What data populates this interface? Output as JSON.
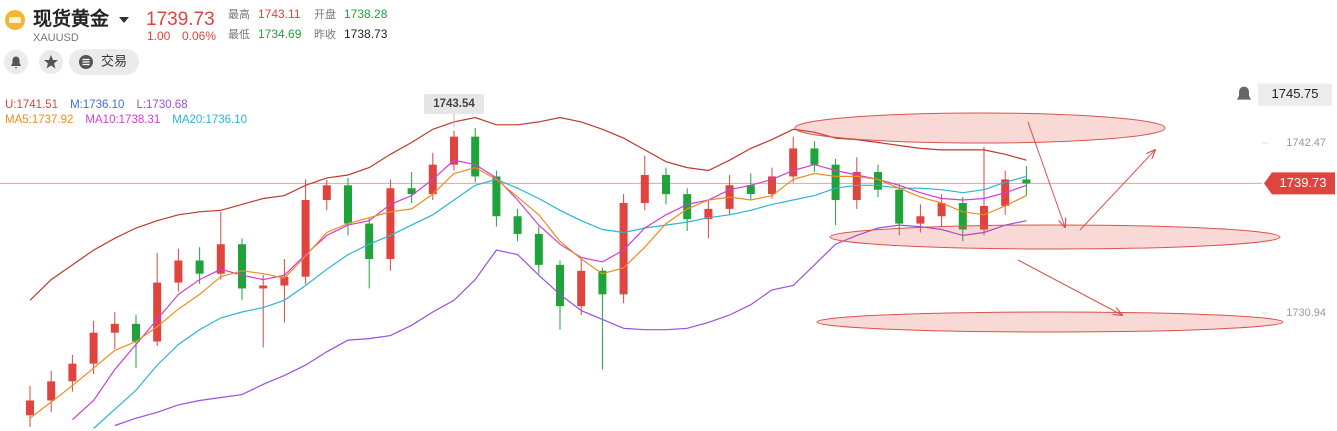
{
  "header": {
    "name": "现货黄金",
    "symbol": "XAUUSD",
    "price": "1739.73",
    "change": "1.00",
    "change_pct": "0.06%",
    "stats": [
      {
        "label": "最高",
        "value": "1743.11",
        "color": "#e0443e"
      },
      {
        "label": "开盘",
        "value": "1738.28",
        "color": "#1fa33a"
      },
      {
        "label": "最低",
        "value": "1734.69",
        "color": "#1fa33a"
      },
      {
        "label": "昨收",
        "value": "1738.73",
        "color": "#222222"
      }
    ],
    "trade_button": "交易"
  },
  "chart_data": {
    "type": "candlestick",
    "ylim": [
      1722.93,
      1752.17
    ],
    "yticks": [
      1742.47,
      1730.94
    ],
    "up_color": "#e0443e",
    "down_color": "#1fa33a",
    "last_price": 1739.73,
    "alert_price": 1745.75,
    "max_label": 1743.54,
    "max_index": 20,
    "legend": [
      [
        {
          "text": "U:1741.51",
          "color": "#e0443e"
        },
        {
          "text": "M:1736.10",
          "color": "#3a6fd8"
        },
        {
          "text": "L:1730.68",
          "color": "#9b4fe0"
        }
      ],
      [
        {
          "text": "MA5:1737.92",
          "color": "#f08c1e"
        },
        {
          "text": "MA10:1738.31",
          "color": "#d43cd6"
        },
        {
          "text": "MA20:1736.10",
          "color": "#2bb4d8"
        }
      ]
    ],
    "candles": [
      [
        1724.0,
        1726.0,
        1723.2,
        1725.0
      ],
      [
        1725.0,
        1727.0,
        1724.2,
        1726.3
      ],
      [
        1726.3,
        1728.1,
        1725.6,
        1727.5
      ],
      [
        1727.5,
        1730.4,
        1726.8,
        1729.6
      ],
      [
        1729.6,
        1731.0,
        1728.5,
        1730.2
      ],
      [
        1730.2,
        1730.8,
        1727.2,
        1729.0
      ],
      [
        1729.0,
        1735.0,
        1728.7,
        1733.0
      ],
      [
        1733.0,
        1735.3,
        1732.4,
        1734.5
      ],
      [
        1734.5,
        1735.4,
        1732.9,
        1733.6
      ],
      [
        1733.6,
        1737.8,
        1733.2,
        1735.6
      ],
      [
        1735.6,
        1736.0,
        1731.8,
        1732.6
      ],
      [
        1732.6,
        1733.5,
        1728.6,
        1732.8
      ],
      [
        1732.8,
        1734.6,
        1730.3,
        1733.4
      ],
      [
        1733.4,
        1740.0,
        1732.9,
        1738.6
      ],
      [
        1738.6,
        1740.0,
        1737.9,
        1739.6
      ],
      [
        1739.6,
        1740.1,
        1736.2,
        1737.0
      ],
      [
        1737.0,
        1737.4,
        1732.6,
        1734.6
      ],
      [
        1734.6,
        1740.0,
        1733.8,
        1739.4
      ],
      [
        1739.4,
        1740.5,
        1738.4,
        1739.0
      ],
      [
        1739.0,
        1741.8,
        1738.6,
        1741.0
      ],
      [
        1741.0,
        1743.3,
        1740.6,
        1742.9
      ],
      [
        1742.9,
        1743.5,
        1739.8,
        1740.2
      ],
      [
        1740.2,
        1740.6,
        1736.8,
        1737.5
      ],
      [
        1737.5,
        1738.0,
        1735.8,
        1736.3
      ],
      [
        1736.3,
        1736.8,
        1733.6,
        1734.2
      ],
      [
        1734.2,
        1734.5,
        1729.8,
        1731.4
      ],
      [
        1731.4,
        1734.6,
        1730.8,
        1733.8
      ],
      [
        1733.8,
        1734.0,
        1727.1,
        1732.2
      ],
      [
        1732.2,
        1739.0,
        1731.6,
        1738.4
      ],
      [
        1738.4,
        1741.6,
        1737.9,
        1740.3
      ],
      [
        1740.3,
        1740.8,
        1738.3,
        1739.0
      ],
      [
        1739.0,
        1739.4,
        1736.5,
        1737.3
      ],
      [
        1737.3,
        1738.6,
        1736.0,
        1738.0
      ],
      [
        1738.0,
        1740.3,
        1737.6,
        1739.6
      ],
      [
        1739.6,
        1740.4,
        1738.6,
        1739.0
      ],
      [
        1739.0,
        1740.8,
        1738.7,
        1740.2
      ],
      [
        1740.2,
        1742.9,
        1739.8,
        1742.1
      ],
      [
        1742.1,
        1742.6,
        1740.5,
        1741.0
      ],
      [
        1741.0,
        1741.4,
        1736.9,
        1738.6
      ],
      [
        1738.6,
        1741.5,
        1738.0,
        1740.5
      ],
      [
        1740.5,
        1741.0,
        1738.8,
        1739.3
      ],
      [
        1739.3,
        1739.7,
        1736.2,
        1737.0
      ],
      [
        1737.0,
        1738.3,
        1736.4,
        1737.5
      ],
      [
        1737.5,
        1739.0,
        1736.8,
        1738.4
      ],
      [
        1738.4,
        1738.8,
        1735.8,
        1736.6
      ],
      [
        1736.6,
        1742.2,
        1736.2,
        1738.2
      ],
      [
        1738.2,
        1740.6,
        1737.6,
        1740.0
      ],
      [
        1740.0,
        1740.9,
        1738.9,
        1739.73
      ]
    ],
    "series": [
      {
        "color": "#c0392b",
        "values": [
          1731.8,
          1733.2,
          1734.2,
          1735.2,
          1736.0,
          1736.7,
          1737.2,
          1737.6,
          1737.8,
          1737.9,
          1738.3,
          1738.7,
          1738.9,
          1739.6,
          1740.1,
          1740.3,
          1740.8,
          1741.7,
          1742.5,
          1743.4,
          1743.9,
          1744.2,
          1743.7,
          1743.7,
          1743.9,
          1744.2,
          1743.9,
          1743.4,
          1742.8,
          1742.0,
          1741.2,
          1740.8,
          1740.6,
          1741.3,
          1742.1,
          1742.7,
          1743.4,
          1743.2,
          1742.8,
          1742.7,
          1742.5,
          1742.3,
          1742.1,
          1742.0,
          1742.0,
          1742.0,
          1741.7,
          1741.3
        ]
      },
      {
        "color": "#9b4fe0",
        "values": [
          null,
          null,
          null,
          null,
          1723.3,
          1723.8,
          1724.2,
          1724.7,
          1725.0,
          1725.2,
          1725.4,
          1726.1,
          1726.7,
          1727.4,
          1728.3,
          1729.1,
          1729.2,
          1729.4,
          1730.1,
          1731.0,
          1731.8,
          1733.2,
          1735.2,
          1734.9,
          1733.5,
          1732.2,
          1731.1,
          1730.5,
          1729.9,
          1729.8,
          1729.8,
          1729.9,
          1730.3,
          1730.8,
          1731.5,
          1732.5,
          1732.8,
          1734.2,
          1735.6,
          1736.2,
          1736.7,
          1736.9,
          1736.8,
          1736.6,
          1736.2,
          1736.4,
          1736.9,
          1737.2
        ]
      },
      {
        "color": "#2bb4d8",
        "values": [
          null,
          null,
          null,
          1723.1,
          1724.4,
          1725.7,
          1727.4,
          1728.8,
          1729.8,
          1730.6,
          1731.0,
          1731.3,
          1731.8,
          1732.8,
          1733.9,
          1734.9,
          1735.6,
          1736.2,
          1736.9,
          1737.6,
          1738.6,
          1739.6,
          1740.0,
          1739.4,
          1738.7,
          1737.9,
          1737.2,
          1736.6,
          1736.4,
          1736.7,
          1736.9,
          1737.1,
          1737.4,
          1737.6,
          1737.9,
          1738.3,
          1738.6,
          1738.9,
          1739.4,
          1739.6,
          1739.6,
          1739.4,
          1739.4,
          1739.3,
          1739.1,
          1739.3,
          1739.8,
          1740.2
        ]
      },
      {
        "color": "#d43cd6",
        "values": [
          null,
          null,
          1723.7,
          1725.0,
          1727.1,
          1728.8,
          1730.5,
          1732.2,
          1733.2,
          1733.9,
          1733.5,
          1733.2,
          1733.5,
          1734.9,
          1736.2,
          1736.9,
          1737.2,
          1738.3,
          1738.9,
          1740.0,
          1741.3,
          1741.0,
          1740.1,
          1738.6,
          1736.9,
          1735.6,
          1734.7,
          1734.4,
          1735.2,
          1736.7,
          1737.6,
          1738.3,
          1738.6,
          1739.3,
          1739.6,
          1740.0,
          1740.6,
          1741.0,
          1740.6,
          1740.3,
          1740.0,
          1739.6,
          1739.1,
          1738.7,
          1738.6,
          1738.7,
          1739.1,
          1739.6
        ]
      },
      {
        "color": "#f08c1e",
        "values": [
          1723.8,
          1724.9,
          1726.0,
          1727.2,
          1728.4,
          1729.0,
          1730.0,
          1731.2,
          1732.2,
          1733.4,
          1733.8,
          1733.6,
          1733.3,
          1734.8,
          1736.4,
          1737.0,
          1737.4,
          1737.8,
          1738.0,
          1739.0,
          1740.4,
          1740.8,
          1740.0,
          1738.8,
          1737.6,
          1735.8,
          1734.6,
          1733.6,
          1734.0,
          1735.4,
          1737.0,
          1738.0,
          1738.6,
          1738.8,
          1738.6,
          1738.9,
          1740.0,
          1740.4,
          1740.2,
          1740.2,
          1740.0,
          1739.4,
          1738.8,
          1738.4,
          1737.8,
          1737.6,
          1738.2,
          1738.9
        ]
      }
    ]
  }
}
